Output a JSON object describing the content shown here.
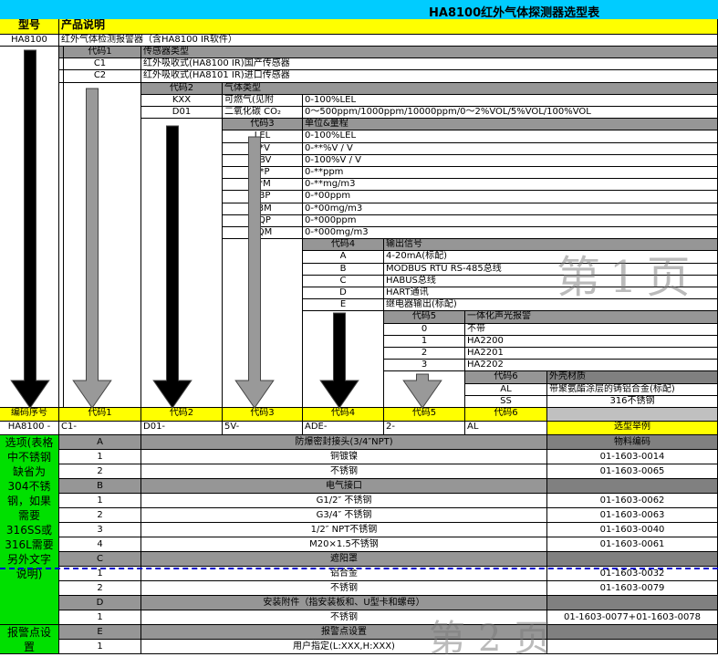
{
  "title": "HA8100红外气体探测器选型表",
  "header": {
    "model": "型号",
    "desc": "产品说明"
  },
  "product": {
    "model": "HA8100",
    "desc": "红外气体检测报警器（含HA8100 IR软件）"
  },
  "level1": {
    "code_header": "代码1",
    "desc_header": "传感器类型",
    "items": [
      {
        "code": "C1",
        "desc": "红外吸收式(HA8100 IR)国产传感器"
      },
      {
        "code": "C2",
        "desc": "红外吸收式(HA8101 IR)进口传感器"
      }
    ]
  },
  "level2": {
    "code_header": "代码2",
    "desc_header": "气体类型",
    "items": [
      {
        "code": "KXX",
        "desc": "可燃气(见附",
        "range": "0-100%LEL"
      },
      {
        "code": "D01",
        "desc": "二氧化碳 CO₂",
        "range": "0～500ppm/1000ppm/10000ppm/0～2%VOL/5%VOL/100%VOL"
      }
    ]
  },
  "level3": {
    "code_header": "代码3",
    "desc_header": "单位&量程",
    "items": [
      {
        "code": "LEL",
        "desc": "0-100%LEL"
      },
      {
        "code": "**V",
        "desc": "0-**%V / V"
      },
      {
        "code": "1BV",
        "desc": "0-100%V / V"
      },
      {
        "code": "**P",
        "desc": "0-**ppm"
      },
      {
        "code": "**M",
        "desc": "0-**mg/m3"
      },
      {
        "code": "*BP",
        "desc": "0-*00ppm"
      },
      {
        "code": "*BM",
        "desc": "0-*00mg/m3"
      },
      {
        "code": "*QP",
        "desc": "0-*000ppm"
      },
      {
        "code": "*QM",
        "desc": "0-*000mg/m3"
      }
    ]
  },
  "level4": {
    "code_header": "代码4",
    "desc_header": "输出信号",
    "items": [
      {
        "code": "A",
        "desc": "4-20mA(标配)"
      },
      {
        "code": "B",
        "desc": "MODBUS RTU RS-485总线"
      },
      {
        "code": "C",
        "desc": "HABUS总线"
      },
      {
        "code": "D",
        "desc": "HART通讯"
      },
      {
        "code": "E",
        "desc": "继电器输出(标配)"
      }
    ]
  },
  "level5": {
    "code_header": "代码5",
    "desc_header": "一体化声光报警",
    "items": [
      {
        "code": "0",
        "desc": "不带"
      },
      {
        "code": "1",
        "desc": "HA2200"
      },
      {
        "code": "2",
        "desc": "HA2201"
      },
      {
        "code": "3",
        "desc": "HA2202"
      }
    ]
  },
  "level6": {
    "code_header": "代码6",
    "desc_header": "外壳材质",
    "items": [
      {
        "code": "AL",
        "desc": "带聚氨酯涂层的铸铝合金(标配)"
      },
      {
        "code": "SS",
        "desc": "316不锈钢"
      }
    ]
  },
  "code_row": {
    "labels": [
      "编码序号",
      "代码1",
      "代码2",
      "代码3",
      "代码4",
      "代码5",
      "代码6"
    ],
    "values": [
      "HA8100 -",
      "C1-",
      "D01-",
      "5V-",
      "ADE-",
      "2-",
      "AL"
    ],
    "example_label": "选型举例"
  },
  "options": {
    "note": "选项(表格中不锈钢缺省为304不锈钢，如果需要316SS或316L需要另外文字说明)",
    "alarm_label": "报警点设置",
    "material_header": "物料编码",
    "rows": [
      {
        "code": "A",
        "desc": "防爆密封接头(3/4″NPT)",
        "material": "",
        "header": true
      },
      {
        "code": "1",
        "desc": "铜镀镍",
        "material": "01-1603-0014"
      },
      {
        "code": "2",
        "desc": "不锈钢",
        "material": "01-1603-0065"
      },
      {
        "code": "B",
        "desc": "电气接口",
        "material": "",
        "header": true
      },
      {
        "code": "1",
        "desc": "G1/2″ 不锈钢",
        "material": "01-1603-0062"
      },
      {
        "code": "2",
        "desc": "G3/4″ 不锈钢",
        "material": "01-1603-0063"
      },
      {
        "code": "3",
        "desc": "1/2″ NPT不锈钢",
        "material": "01-1603-0040"
      },
      {
        "code": "4",
        "desc": "M20×1.5不锈钢",
        "material": "01-1603-0061"
      },
      {
        "code": "C",
        "desc": "遮阳罩",
        "material": "",
        "header": true
      },
      {
        "code": "1",
        "desc": "铝合金",
        "material": "01-1603-0032"
      },
      {
        "code": "2",
        "desc": "不锈钢",
        "material": "01-1603-0079"
      },
      {
        "code": "D",
        "desc": "安装附件（指安装板和、U型卡和螺母）",
        "material": "",
        "header": true
      },
      {
        "code": "1",
        "desc": "不锈钢",
        "material": "01-1603-0077+01-1603-0078"
      },
      {
        "code": "E",
        "desc": "报警点设置",
        "material": "",
        "header": true
      },
      {
        "code": "1",
        "desc": "用户指定(L:XXX,H:XXX)",
        "material": ""
      }
    ]
  },
  "watermarks": {
    "page1": "第1页",
    "page2": "第2页"
  },
  "colors": {
    "title_bg": "#00ccff",
    "header_bg": "#ffff00",
    "option_bg": "#00e000",
    "code_header_bg": "#969696"
  }
}
